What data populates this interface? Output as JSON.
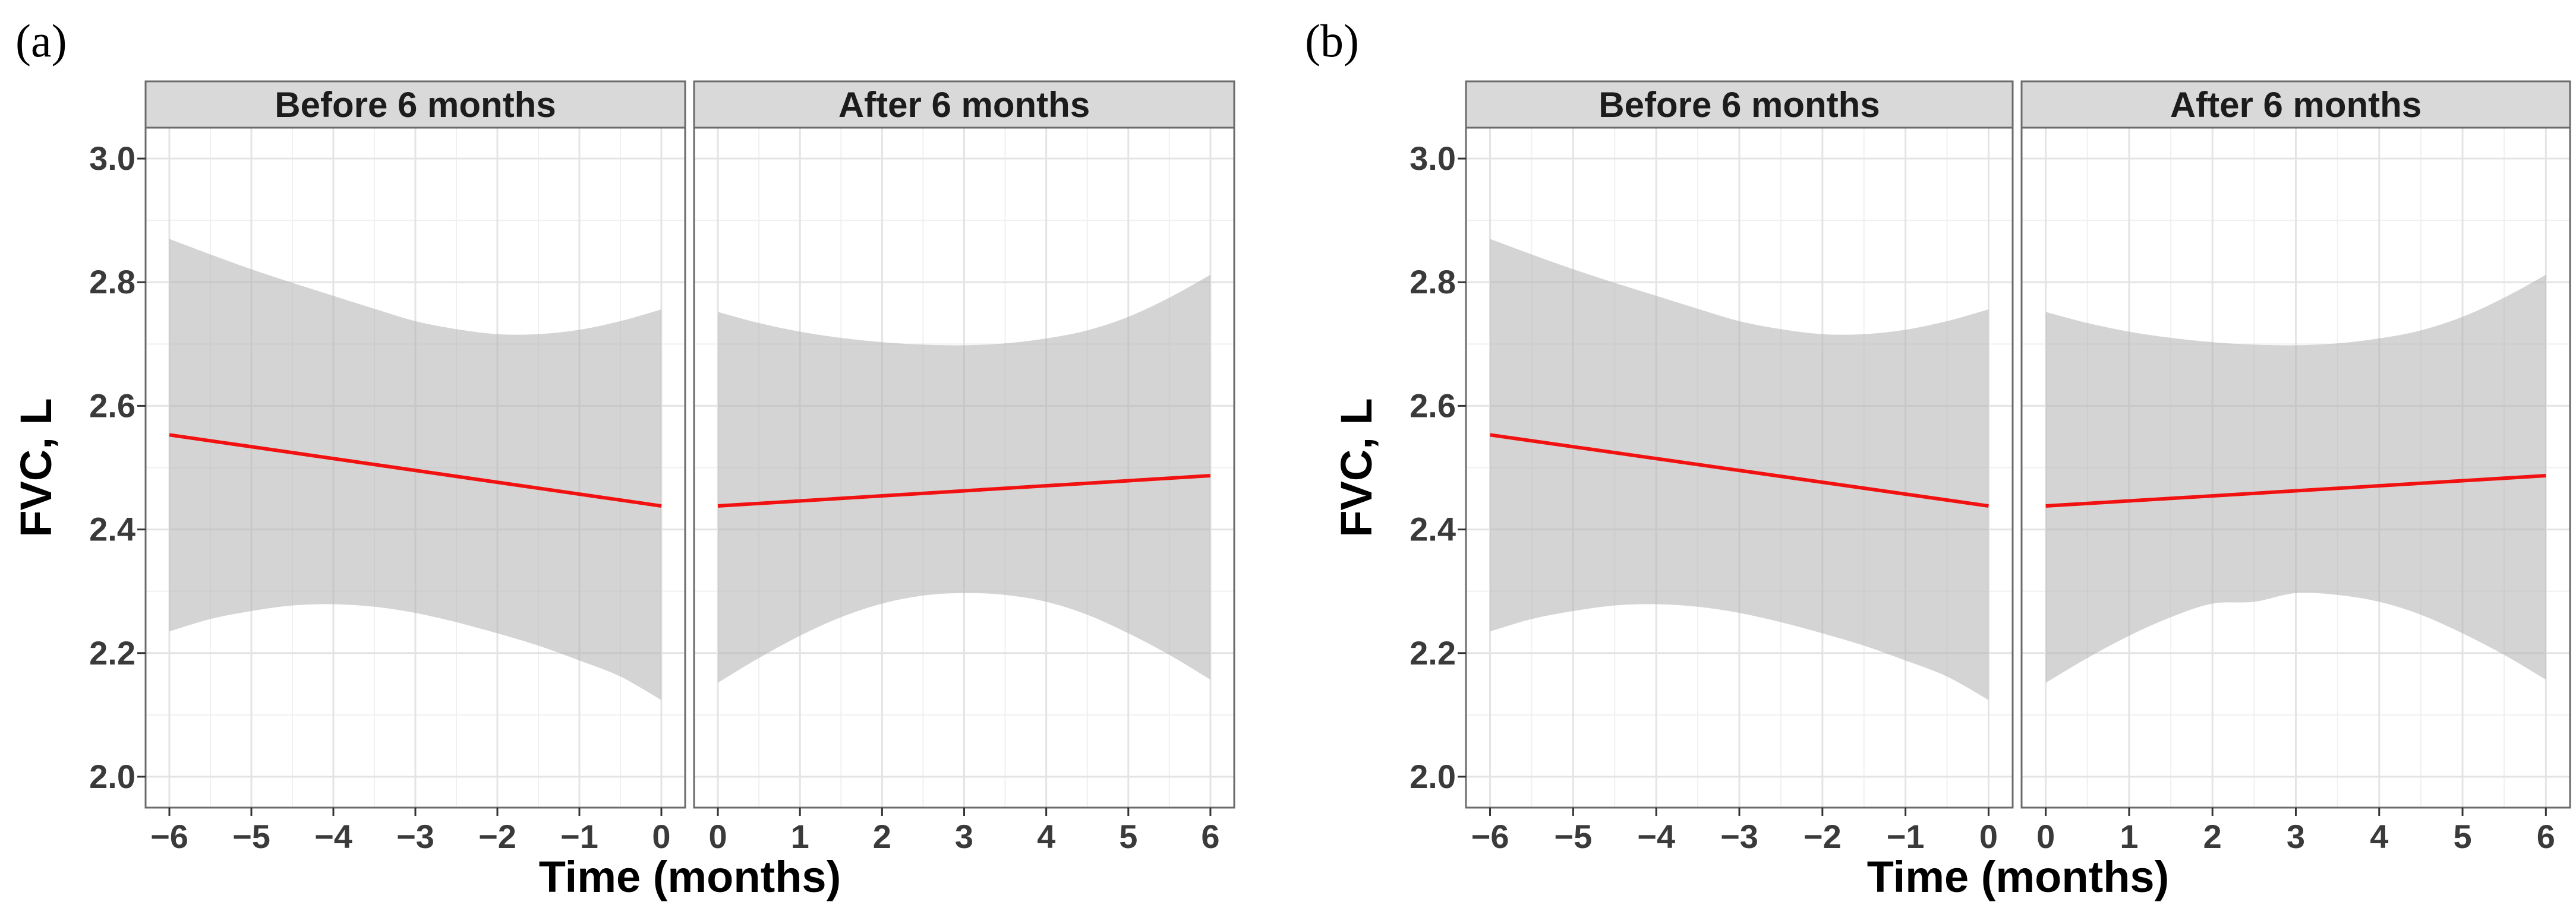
{
  "figure": {
    "background": "#ffffff"
  },
  "style": {
    "trend_color": "#f21111",
    "band_color": "#b0b0b0",
    "band_opacity": 0.55,
    "panel_bg": "#ffffff",
    "panel_border": "#6b6b6b",
    "strip_bg": "#d9d9d9",
    "strip_border": "#6b6b6b",
    "strip_text": "#1c1c1c",
    "grid_major": "#e4e4e4",
    "grid_minor": "#f0f0f0",
    "tick_mark": "#333333",
    "tick_label": "#3a3a3a",
    "axis_title": "#000000"
  },
  "chart_data": [
    {
      "panel": "a",
      "tag": "(a)",
      "type": "line",
      "title": "",
      "xlabel": "Time (months)",
      "ylabel": "FVC, L",
      "ylim": [
        1.95,
        3.05
      ],
      "yticks": [
        2.0,
        2.2,
        2.4,
        2.6,
        2.8,
        3.0
      ],
      "grid": true,
      "legend": "none",
      "facets": [
        {
          "label": "Before 6 months",
          "xticks": [
            -6,
            -5,
            -4,
            -3,
            -2,
            -1,
            0
          ],
          "xlim": [
            -6.29,
            0.29
          ],
          "trend": {
            "x": [
              -6,
              0
            ],
            "y": [
              2.553,
              2.438
            ]
          },
          "ci_band": {
            "x": [
              -6,
              -5.5,
              -5,
              -4.5,
              -4,
              -3.5,
              -3,
              -2.5,
              -2,
              -1.5,
              -1,
              -0.5,
              0
            ],
            "upper": [
              2.87,
              2.845,
              2.821,
              2.799,
              2.778,
              2.757,
              2.737,
              2.724,
              2.716,
              2.716,
              2.723,
              2.737,
              2.756
            ],
            "lower": [
              2.235,
              2.255,
              2.268,
              2.277,
              2.279,
              2.275,
              2.265,
              2.25,
              2.232,
              2.212,
              2.188,
              2.162,
              2.124
            ]
          }
        },
        {
          "label": "After 6 months",
          "xticks": [
            0,
            1,
            2,
            3,
            4,
            5,
            6
          ],
          "xlim": [
            -0.29,
            6.29
          ],
          "trend": {
            "x": [
              0,
              6
            ],
            "y": [
              2.438,
              2.487
            ]
          },
          "ci_band": {
            "x": [
              0,
              0.5,
              1,
              1.5,
              2,
              2.5,
              3,
              3.5,
              4,
              4.5,
              5,
              5.5,
              6
            ],
            "upper": [
              2.752,
              2.734,
              2.72,
              2.71,
              2.703,
              2.699,
              2.698,
              2.701,
              2.709,
              2.722,
              2.744,
              2.775,
              2.812
            ],
            "lower": [
              2.152,
              2.192,
              2.228,
              2.258,
              2.28,
              2.293,
              2.297,
              2.294,
              2.283,
              2.262,
              2.232,
              2.197,
              2.157
            ]
          }
        }
      ]
    },
    {
      "panel": "b",
      "tag": "(b)",
      "type": "line",
      "title": "",
      "xlabel": "Time (months)",
      "ylabel": "FVC, L",
      "ylim": [
        1.95,
        3.05
      ],
      "yticks": [
        2.0,
        2.2,
        2.4,
        2.6,
        2.8,
        3.0
      ],
      "grid": true,
      "legend": "none",
      "facets": [
        {
          "label": "Before 6 months",
          "xticks": [
            -6,
            -5,
            -4,
            -3,
            -2,
            -1,
            0
          ],
          "xlim": [
            -6.29,
            0.29
          ],
          "trend": {
            "x": [
              -6,
              0
            ],
            "y": [
              2.553,
              2.438
            ]
          },
          "ci_band": {
            "x": [
              -6,
              -5.5,
              -5,
              -4.5,
              -4,
              -3.5,
              -3,
              -2.5,
              -2,
              -1.5,
              -1,
              -0.5,
              0
            ],
            "upper": [
              2.87,
              2.845,
              2.821,
              2.799,
              2.778,
              2.757,
              2.737,
              2.724,
              2.716,
              2.716,
              2.723,
              2.737,
              2.756
            ],
            "lower": [
              2.235,
              2.255,
              2.268,
              2.277,
              2.279,
              2.275,
              2.265,
              2.25,
              2.232,
              2.212,
              2.188,
              2.162,
              2.124
            ]
          }
        },
        {
          "label": "After 6 months",
          "xticks": [
            0,
            1,
            2,
            3,
            4,
            5,
            6
          ],
          "xlim": [
            -0.29,
            6.29
          ],
          "trend": {
            "x": [
              0,
              6
            ],
            "y": [
              2.438,
              2.487
            ]
          },
          "ci_band": {
            "x": [
              0,
              0.5,
              1,
              1.5,
              2,
              2.5,
              3,
              3.5,
              4,
              4.5,
              5,
              5.5,
              6
            ],
            "upper": [
              2.752,
              2.734,
              2.72,
              2.71,
              2.703,
              2.699,
              2.698,
              2.701,
              2.709,
              2.722,
              2.744,
              2.775,
              2.812
            ],
            "lower": [
              2.152,
              2.192,
              2.228,
              2.258,
              2.28,
              2.283,
              2.297,
              2.294,
              2.283,
              2.262,
              2.232,
              2.197,
              2.157
            ]
          }
        }
      ]
    }
  ]
}
